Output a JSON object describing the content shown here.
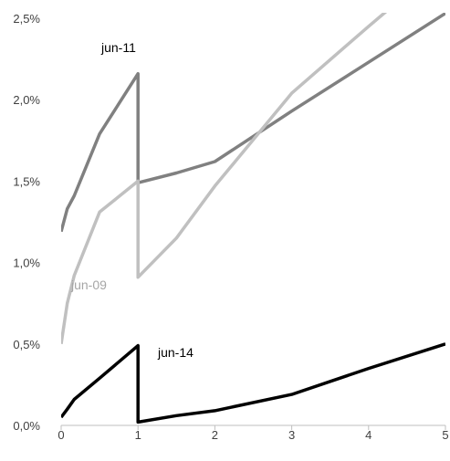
{
  "chart_data": {
    "type": "line",
    "title": "",
    "xlabel": "",
    "ylabel": "",
    "xlim": [
      0,
      5
    ],
    "ylim": [
      0,
      2.5
    ],
    "x_ticks": [
      0,
      1,
      2,
      3,
      4,
      5
    ],
    "x_tick_labels": [
      "0",
      "1",
      "2",
      "3",
      "4",
      "5"
    ],
    "y_ticks": [
      0,
      0.5,
      1,
      1.5,
      2,
      2.5
    ],
    "y_tick_labels": [
      "0,0%",
      "0,5%",
      "1,0%",
      "1,5%",
      "2,0%",
      "2,5%"
    ],
    "grid": false,
    "legend": "none",
    "series": [
      {
        "name": "jun-11",
        "color": "#808080",
        "label_color": "#000000",
        "points": [
          [
            0,
            1.19
          ],
          [
            0.08,
            1.33
          ],
          [
            0.17,
            1.41
          ],
          [
            0.5,
            1.79
          ],
          [
            1,
            2.16
          ],
          [
            1,
            1.49
          ],
          [
            1.5,
            1.55
          ],
          [
            2,
            1.62
          ],
          [
            3,
            1.93
          ],
          [
            4,
            2.23
          ],
          [
            5,
            2.53
          ]
        ]
      },
      {
        "name": "jun-09",
        "color": "#c0c0c0",
        "label_color": "#a6a6a6",
        "points": [
          [
            0,
            0.5
          ],
          [
            0.08,
            0.75
          ],
          [
            0.17,
            0.92
          ],
          [
            0.5,
            1.31
          ],
          [
            1,
            1.5
          ],
          [
            1,
            0.91
          ],
          [
            1.5,
            1.15
          ],
          [
            2,
            1.47
          ],
          [
            3,
            2.04
          ],
          [
            4,
            2.45
          ],
          [
            5,
            2.85
          ]
        ]
      },
      {
        "name": "jun-14",
        "color": "#000000",
        "label_color": "#000000",
        "points": [
          [
            0,
            0.05
          ],
          [
            0.08,
            0.1
          ],
          [
            0.17,
            0.16
          ],
          [
            0.5,
            0.29
          ],
          [
            1,
            0.49
          ],
          [
            1,
            0.02
          ],
          [
            1.5,
            0.06
          ],
          [
            2,
            0.09
          ],
          [
            3,
            0.19
          ],
          [
            4,
            0.35
          ],
          [
            5,
            0.5
          ]
        ]
      }
    ]
  }
}
